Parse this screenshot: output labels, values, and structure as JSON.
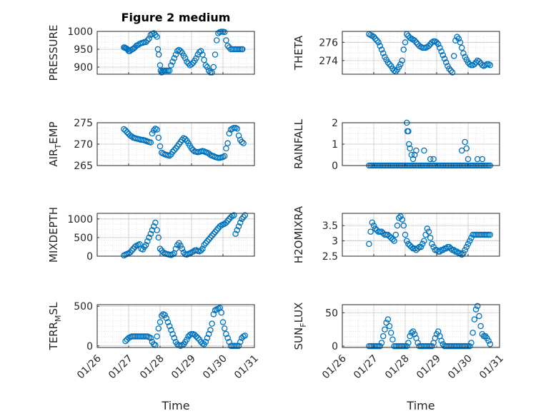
{
  "figure": {
    "title": "Figure 2 medium",
    "xlabel": "Time",
    "x_ticks": [
      "01/26",
      "01/27",
      "01/28",
      "01/29",
      "01/30",
      "01/31"
    ],
    "marker_color": "#0072bd"
  },
  "chart_data": [
    {
      "type": "scatter",
      "name": "PRESSURE",
      "ylabel": "PRESSURE",
      "xlim": [
        0,
        5
      ],
      "ylim": [
        880,
        1000
      ],
      "yticks": [
        900,
        950,
        1000
      ],
      "x": [
        0.85,
        0.87,
        0.9,
        0.93,
        0.96,
        1.0,
        1.04,
        1.08,
        1.12,
        1.16,
        1.2,
        1.25,
        1.3,
        1.35,
        1.4,
        1.45,
        1.5,
        1.55,
        1.6,
        1.65,
        1.7,
        1.75,
        1.8,
        1.85,
        1.9,
        1.93,
        1.96,
        2.0,
        2.02,
        2.05,
        2.08,
        2.12,
        2.15,
        2.2,
        2.25,
        2.3,
        2.35,
        2.4,
        2.45,
        2.5,
        2.55,
        2.6,
        2.65,
        2.7,
        2.75,
        2.8,
        2.85,
        2.9,
        2.95,
        3.0,
        3.05,
        3.1,
        3.15,
        3.2,
        3.25,
        3.3,
        3.35,
        3.4,
        3.45,
        3.5,
        3.55,
        3.6,
        3.65,
        3.7,
        3.75,
        3.8,
        3.85,
        3.9,
        3.95,
        4.0,
        4.05,
        4.1,
        4.15,
        4.2,
        4.25,
        4.3,
        4.35,
        4.4,
        4.45,
        4.5,
        4.55,
        4.6,
        4.62
      ],
      "y": [
        955,
        955,
        953,
        952,
        950,
        945,
        945,
        948,
        950,
        952,
        955,
        960,
        962,
        965,
        967,
        968,
        970,
        970,
        975,
        980,
        990,
        993,
        995,
        990,
        985,
        950,
        935,
        905,
        890,
        885,
        890,
        890,
        890,
        890,
        890,
        890,
        905,
        915,
        925,
        935,
        945,
        948,
        945,
        940,
        932,
        925,
        915,
        910,
        905,
        908,
        912,
        918,
        925,
        935,
        942,
        945,
        935,
        920,
        905,
        900,
        890,
        885,
        885,
        900,
        935,
        975,
        995,
        998,
        999,
        999,
        998,
        975,
        960,
        955,
        950,
        950,
        950,
        950,
        950,
        950,
        950,
        950,
        950
      ]
    },
    {
      "type": "scatter",
      "name": "THETA",
      "ylabel": "THETA",
      "xlim": [
        0,
        5
      ],
      "ylim": [
        272.5,
        277.2
      ],
      "yticks": [
        274,
        276
      ],
      "x": [
        0.85,
        0.9,
        0.95,
        1.0,
        1.05,
        1.1,
        1.15,
        1.2,
        1.25,
        1.3,
        1.35,
        1.4,
        1.45,
        1.5,
        1.55,
        1.6,
        1.65,
        1.7,
        1.75,
        1.8,
        1.85,
        1.9,
        1.95,
        2.0,
        2.05,
        2.1,
        2.15,
        2.2,
        2.25,
        2.3,
        2.35,
        2.4,
        2.45,
        2.5,
        2.55,
        2.6,
        2.65,
        2.7,
        2.75,
        2.8,
        2.85,
        2.9,
        2.95,
        3.0,
        3.05,
        3.1,
        3.15,
        3.2,
        3.25,
        3.3,
        3.35,
        3.4,
        3.45,
        3.5,
        3.55,
        3.6,
        3.65,
        3.7,
        3.75,
        3.8,
        3.85,
        3.9,
        3.95,
        4.0,
        4.05,
        4.1,
        4.15,
        4.2,
        4.25,
        4.3,
        4.35,
        4.4,
        4.45,
        4.5,
        4.55,
        4.6,
        4.65,
        4.7
      ],
      "y": [
        276.9,
        276.8,
        276.7,
        276.6,
        276.4,
        276.2,
        276,
        275.6,
        275.2,
        274.8,
        274.4,
        274.1,
        273.8,
        273.6,
        273.4,
        273.1,
        272.9,
        272.8,
        273,
        273.3,
        273.6,
        274,
        275.2,
        276,
        276.9,
        276.7,
        276.5,
        276.4,
        276.3,
        276.2,
        276,
        275.8,
        275.6,
        275.5,
        275.4,
        275.4,
        275.4,
        275.5,
        275.6,
        275.8,
        276,
        276.1,
        276.1,
        276,
        275.8,
        275.4,
        275,
        274.6,
        274.2,
        273.8,
        273.4,
        273.1,
        272.9,
        272.7,
        274.5,
        276.2,
        276.6,
        276.4,
        276,
        275.4,
        274.8,
        274.4,
        274.1,
        273.8,
        273.6,
        273.5,
        273.5,
        273.6,
        273.8,
        274,
        273.9,
        273.7,
        273.5,
        273.4,
        273.5,
        273.6,
        273.6,
        273.5
      ]
    },
    {
      "type": "scatter",
      "name": "AIR_TEMP",
      "ylabel": "AIR_TEMP",
      "xlim": [
        0,
        5
      ],
      "ylim": [
        265,
        275
      ],
      "yticks": [
        265,
        270,
        275
      ],
      "x": [
        0.85,
        0.9,
        0.95,
        1.0,
        1.05,
        1.1,
        1.15,
        1.2,
        1.25,
        1.3,
        1.35,
        1.4,
        1.45,
        1.5,
        1.55,
        1.6,
        1.65,
        1.7,
        1.75,
        1.8,
        1.85,
        1.9,
        1.95,
        2.0,
        2.05,
        2.1,
        2.15,
        2.2,
        2.25,
        2.3,
        2.35,
        2.4,
        2.45,
        2.5,
        2.55,
        2.6,
        2.65,
        2.7,
        2.75,
        2.8,
        2.85,
        2.9,
        2.95,
        3.0,
        3.05,
        3.1,
        3.15,
        3.2,
        3.25,
        3.3,
        3.35,
        3.4,
        3.45,
        3.5,
        3.55,
        3.6,
        3.65,
        3.7,
        3.75,
        3.8,
        3.85,
        3.9,
        3.95,
        4.0,
        4.05,
        4.1,
        4.15,
        4.2,
        4.25,
        4.3,
        4.35,
        4.4,
        4.45,
        4.5,
        4.55,
        4.6,
        4.65
      ],
      "y": [
        273.5,
        273.2,
        272.8,
        272.4,
        272,
        271.8,
        271.5,
        271.4,
        271.3,
        271.2,
        271.1,
        271,
        271,
        270.9,
        270.8,
        270.6,
        270.5,
        270.4,
        272.5,
        273.2,
        273.6,
        273.4,
        271.5,
        269.5,
        268,
        267.8,
        267.6,
        267.5,
        267.4,
        267.3,
        267.6,
        268.2,
        268.6,
        269,
        269.5,
        270,
        270.5,
        271,
        271.4,
        271.2,
        270.8,
        270.2,
        269.6,
        269,
        268.6,
        268.3,
        268.2,
        268.1,
        268.2,
        268.3,
        268.4,
        268.3,
        268.1,
        268,
        267.8,
        267.5,
        267.3,
        267.2,
        267,
        266.9,
        266.8,
        266.8,
        266.9,
        267,
        267.2,
        269,
        270.2,
        272.5,
        273.4,
        273.6,
        273.8,
        273.8,
        273.6,
        272,
        271,
        270.5,
        270.2
      ]
    },
    {
      "type": "scatter",
      "name": "RAINFALL",
      "ylabel": "RAINFALL",
      "xlim": [
        0,
        5
      ],
      "ylim": [
        0,
        2
      ],
      "yticks": [
        0,
        1,
        2
      ],
      "x": [
        0.85,
        0.9,
        0.95,
        1.0,
        1.05,
        1.1,
        1.15,
        1.2,
        1.25,
        1.3,
        1.35,
        1.4,
        1.45,
        1.5,
        1.55,
        1.6,
        1.65,
        1.7,
        1.75,
        1.8,
        1.85,
        1.9,
        1.95,
        2.0,
        2.05,
        2.1,
        2.15,
        2.2,
        2.25,
        2.3,
        2.35,
        2.4,
        2.45,
        2.5,
        2.55,
        2.6,
        2.65,
        2.7,
        2.75,
        2.8,
        2.85,
        2.9,
        2.95,
        3.0,
        3.05,
        3.1,
        3.15,
        3.2,
        3.25,
        3.3,
        3.35,
        3.4,
        3.45,
        3.5,
        3.55,
        3.6,
        3.65,
        3.7,
        3.75,
        3.8,
        3.85,
        3.9,
        3.95,
        4.0,
        4.05,
        4.1,
        4.15,
        4.2,
        4.25,
        4.3,
        4.35,
        4.4,
        4.45,
        4.5,
        4.55,
        4.6,
        4.65,
        4.7,
        2.05,
        2.07,
        2.1,
        2.12,
        2.15,
        2.2,
        2.25,
        2.3,
        2.35,
        2.6,
        2.8,
        2.9,
        3.8,
        3.9,
        3.95,
        4.0,
        4.3,
        4.45
      ],
      "y": [
        0,
        0,
        0,
        0,
        0,
        0,
        0,
        0,
        0,
        0,
        0,
        0,
        0,
        0,
        0,
        0,
        0,
        0,
        0,
        0,
        0,
        0,
        0,
        0,
        0,
        0,
        0,
        0,
        0,
        0,
        0,
        0,
        0,
        0,
        0,
        0,
        0,
        0,
        0,
        0,
        0,
        0,
        0,
        0,
        0,
        0,
        0,
        0,
        0,
        0,
        0,
        0,
        0,
        0,
        0,
        0,
        0,
        0,
        0,
        0,
        0,
        0,
        0,
        0,
        0,
        0,
        0,
        0,
        0,
        0,
        0,
        0,
        0,
        0,
        0,
        0,
        0,
        0,
        2,
        1.6,
        1.6,
        1,
        0.8,
        0.5,
        0.3,
        0.5,
        0.7,
        0.7,
        0.3,
        0.3,
        0.7,
        1.1,
        0.8,
        0.3,
        0.3,
        0.3
      ]
    },
    {
      "type": "scatter",
      "name": "MIXDEPTH",
      "ylabel": "MIXDEPTH",
      "xlim": [
        0,
        5
      ],
      "ylim": [
        0,
        1150
      ],
      "yticks": [
        0,
        500,
        1000
      ],
      "x": [
        0.85,
        0.9,
        0.95,
        1.0,
        1.05,
        1.1,
        1.15,
        1.2,
        1.25,
        1.3,
        1.35,
        1.4,
        1.45,
        1.5,
        1.55,
        1.6,
        1.65,
        1.7,
        1.75,
        1.8,
        1.85,
        1.9,
        1.95,
        2.0,
        2.05,
        2.1,
        2.15,
        2.2,
        2.25,
        2.3,
        2.35,
        2.4,
        2.45,
        2.5,
        2.55,
        2.6,
        2.65,
        2.7,
        2.75,
        2.8,
        2.85,
        2.9,
        2.95,
        3.0,
        3.05,
        3.1,
        3.15,
        3.2,
        3.25,
        3.3,
        3.35,
        3.4,
        3.45,
        3.5,
        3.55,
        3.6,
        3.65,
        3.7,
        3.75,
        3.8,
        3.85,
        3.9,
        3.95,
        4.0,
        4.05,
        4.1,
        4.15,
        4.2,
        4.25,
        4.3,
        4.35,
        4.4,
        4.45,
        4.5,
        4.55,
        4.6,
        4.65,
        4.7
      ],
      "y": [
        20,
        40,
        60,
        80,
        100,
        150,
        200,
        250,
        280,
        300,
        320,
        200,
        180,
        250,
        300,
        400,
        500,
        600,
        700,
        800,
        900,
        700,
        500,
        200,
        150,
        100,
        80,
        60,
        50,
        40,
        30,
        50,
        80,
        200,
        300,
        350,
        280,
        200,
        100,
        50,
        40,
        60,
        80,
        100,
        120,
        150,
        160,
        140,
        130,
        150,
        200,
        300,
        350,
        400,
        450,
        500,
        550,
        600,
        650,
        700,
        750,
        800,
        830,
        850,
        870,
        900,
        950,
        1000,
        1050,
        1080,
        1100,
        600,
        700,
        800,
        900,
        1000,
        1050,
        1100
      ]
    },
    {
      "type": "scatter",
      "name": "H2OMIXRA",
      "ylabel": "H2OMIXRA",
      "xlim": [
        0,
        5
      ],
      "ylim": [
        2.5,
        3.9
      ],
      "yticks": [
        2.5,
        3,
        3.5
      ],
      "x": [
        0.85,
        0.9,
        0.95,
        1.0,
        1.05,
        1.1,
        1.15,
        1.2,
        1.25,
        1.3,
        1.35,
        1.4,
        1.45,
        1.5,
        1.55,
        1.6,
        1.65,
        1.7,
        1.75,
        1.8,
        1.85,
        1.9,
        1.95,
        2.0,
        2.05,
        2.1,
        2.15,
        2.2,
        2.25,
        2.3,
        2.35,
        2.4,
        2.45,
        2.5,
        2.55,
        2.6,
        2.65,
        2.7,
        2.75,
        2.8,
        2.85,
        2.9,
        2.95,
        3.0,
        3.05,
        3.1,
        3.15,
        3.2,
        3.25,
        3.3,
        3.35,
        3.4,
        3.45,
        3.5,
        3.55,
        3.6,
        3.65,
        3.7,
        3.75,
        3.8,
        3.85,
        3.9,
        3.95,
        4.0,
        4.05,
        4.1,
        4.15,
        4.2,
        4.25,
        4.3,
        4.35,
        4.4,
        4.45,
        4.5,
        4.55,
        4.6,
        4.65,
        4.7
      ],
      "y": [
        2.9,
        3.3,
        3.6,
        3.5,
        3.4,
        3.35,
        3.3,
        3.3,
        3.3,
        3.25,
        3.2,
        3.2,
        3.2,
        3.15,
        3.1,
        3.05,
        3.0,
        3.2,
        3.5,
        3.75,
        3.8,
        3.7,
        3.5,
        3.2,
        3.0,
        2.9,
        2.85,
        2.8,
        2.75,
        2.75,
        2.7,
        2.75,
        2.8,
        2.8,
        2.9,
        3.0,
        3.2,
        3.4,
        3.3,
        3.1,
        2.9,
        2.8,
        2.7,
        2.7,
        2.65,
        2.65,
        2.7,
        2.7,
        2.75,
        2.75,
        2.8,
        2.8,
        2.75,
        2.7,
        2.7,
        2.65,
        2.65,
        2.6,
        2.6,
        2.55,
        2.6,
        2.7,
        2.8,
        2.9,
        3.0,
        3.1,
        3.2,
        3.2,
        3.2,
        3.2,
        3.2,
        3.2,
        3.2,
        3.2,
        3.2,
        3.2,
        3.2,
        3.2
      ]
    },
    {
      "type": "scatter",
      "name": "TERR_MSL",
      "ylabel": "TERR_MSL",
      "xlim": [
        0,
        5
      ],
      "ylim": [
        -20,
        520
      ],
      "yticks": [
        0,
        500
      ],
      "x": [
        0.9,
        0.95,
        1.0,
        1.05,
        1.1,
        1.15,
        1.2,
        1.25,
        1.3,
        1.35,
        1.4,
        1.45,
        1.5,
        1.55,
        1.6,
        1.65,
        1.7,
        1.75,
        1.8,
        1.85,
        1.9,
        1.95,
        2.0,
        2.05,
        2.1,
        2.15,
        2.2,
        2.25,
        2.3,
        2.35,
        2.4,
        2.45,
        2.5,
        2.55,
        2.6,
        2.65,
        2.7,
        2.75,
        2.8,
        2.85,
        2.9,
        2.95,
        3.0,
        3.05,
        3.1,
        3.15,
        3.2,
        3.25,
        3.3,
        3.35,
        3.4,
        3.45,
        3.5,
        3.55,
        3.6,
        3.65,
        3.7,
        3.75,
        3.8,
        3.85,
        3.9,
        3.95,
        4.0,
        4.05,
        4.1,
        4.15,
        4.2,
        4.25,
        4.3,
        4.35,
        4.4,
        4.45,
        4.5,
        4.55,
        4.6,
        4.65,
        4.7
      ],
      "y": [
        60,
        80,
        100,
        110,
        120,
        120,
        120,
        120,
        120,
        120,
        120,
        120,
        120,
        120,
        120,
        110,
        100,
        50,
        20,
        10,
        120,
        220,
        300,
        380,
        400,
        390,
        350,
        300,
        250,
        200,
        150,
        100,
        50,
        20,
        10,
        0,
        10,
        20,
        50,
        80,
        120,
        140,
        150,
        150,
        140,
        120,
        100,
        80,
        50,
        30,
        20,
        50,
        100,
        150,
        200,
        280,
        400,
        450,
        460,
        470,
        480,
        420,
        300,
        220,
        150,
        100,
        50,
        0,
        0,
        0,
        0,
        0,
        0,
        50,
        100,
        120,
        130
      ]
    },
    {
      "type": "scatter",
      "name": "SUN_FLUX",
      "ylabel": "SUN_FLUX",
      "xlim": [
        0,
        5
      ],
      "ylim": [
        -2,
        62
      ],
      "yticks": [
        0,
        50
      ],
      "x": [
        0.85,
        0.9,
        0.95,
        1.0,
        1.05,
        1.1,
        1.15,
        1.2,
        1.25,
        1.3,
        1.35,
        1.4,
        1.45,
        1.5,
        1.55,
        1.6,
        1.65,
        1.7,
        1.75,
        1.8,
        1.85,
        1.9,
        1.95,
        2.0,
        2.05,
        2.1,
        2.15,
        2.2,
        2.25,
        2.3,
        2.35,
        2.4,
        2.45,
        2.5,
        2.55,
        2.6,
        2.65,
        2.7,
        2.75,
        2.8,
        2.85,
        2.9,
        2.95,
        3.0,
        3.05,
        3.1,
        3.15,
        3.2,
        3.25,
        3.3,
        3.35,
        3.4,
        3.45,
        3.5,
        3.55,
        3.6,
        3.65,
        3.7,
        3.75,
        3.8,
        3.85,
        3.9,
        3.95,
        4.0,
        4.05,
        4.1,
        4.15,
        4.2,
        4.25,
        4.3,
        4.35,
        4.4,
        4.45,
        4.5,
        4.55,
        4.6,
        4.65,
        4.7
      ],
      "y": [
        0,
        0,
        0,
        0,
        0,
        0,
        0,
        0,
        5,
        15,
        25,
        35,
        40,
        30,
        20,
        10,
        0,
        0,
        0,
        0,
        0,
        0,
        0,
        0,
        0,
        5,
        15,
        20,
        22,
        18,
        12,
        5,
        0,
        0,
        0,
        0,
        0,
        0,
        0,
        0,
        0,
        5,
        12,
        18,
        22,
        15,
        8,
        3,
        0,
        0,
        0,
        0,
        0,
        0,
        0,
        0,
        0,
        0,
        0,
        0,
        0,
        0,
        0,
        0,
        0,
        5,
        20,
        40,
        55,
        60,
        45,
        30,
        18,
        15,
        15,
        12,
        8,
        3
      ]
    }
  ]
}
